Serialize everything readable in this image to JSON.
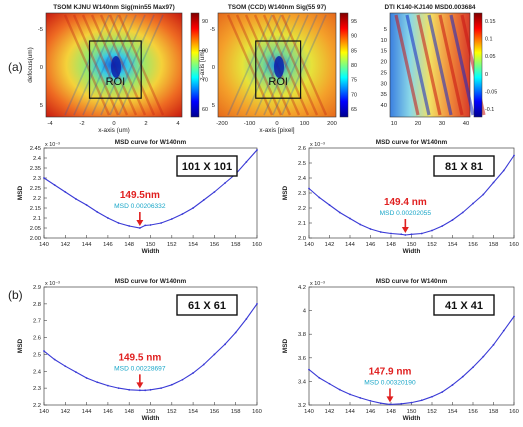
{
  "panel_labels": {
    "a": "(a)",
    "b": "(b)"
  },
  "colors": {
    "curve": "#3a3ad6",
    "red": "#e02020",
    "cyan": "#19a6c8"
  },
  "heatmaps": [
    {
      "title": "TSOM KJNU W140nm Sig(min55 Max97)",
      "xlabel": "x-axis (um)",
      "ylabel": "defocus(um)",
      "xticks": [
        "-4",
        "-2",
        "0",
        "2",
        "4"
      ],
      "yticks": [
        "-5",
        "0",
        "5"
      ],
      "cticks": [
        "90",
        "80",
        "70",
        "60"
      ],
      "roi": "ROI"
    },
    {
      "title": "TSOM (CCD) W140nm Sig(55 97)",
      "xlabel": "x-axis [pixel]",
      "ylabel": "z-axis [um]",
      "xticks": [
        "-200",
        "-100",
        "0",
        "100",
        "200"
      ],
      "yticks": [
        "-5",
        "0",
        "5"
      ],
      "cticks": [
        "95",
        "90",
        "85",
        "80",
        "75",
        "70",
        "65"
      ],
      "roi": "ROI"
    },
    {
      "title": "DTI K140-KJ140 MSD0.003684",
      "xlabel": "",
      "ylabel": "",
      "xticks": [
        "10",
        "20",
        "30",
        "40"
      ],
      "yticks": [
        "5",
        "10",
        "15",
        "20",
        "25",
        "30",
        "35",
        "40"
      ],
      "cticks": [
        "0.15",
        "0.1",
        "0.05",
        "0",
        "-0.05",
        "-0.1"
      ],
      "roi": ""
    }
  ],
  "chart_data": [
    {
      "type": "line",
      "title": "MSD curve for W140nm",
      "xlabel": "Width",
      "ylabel": "MSD",
      "exponent": "x 10⁻³",
      "box_label": "101 X 101",
      "min_label": "149.5nm",
      "msd_label": "MSD  0.00206332",
      "xlim": [
        140,
        160
      ],
      "ylim": [
        2.0,
        2.45
      ],
      "xticks": [
        140,
        142,
        144,
        146,
        148,
        150,
        152,
        154,
        156,
        158,
        160
      ],
      "yticks": [
        2.0,
        2.05,
        2.1,
        2.15,
        2.2,
        2.25,
        2.3,
        2.35,
        2.4,
        2.45
      ],
      "ytick_labels": [
        "2.00",
        "2.05",
        "2.1",
        "2.15",
        "2.2",
        "2.25",
        "2.3",
        "2.35",
        "2.4",
        "2.45"
      ],
      "x": [
        140,
        141,
        142,
        143,
        144,
        145,
        146,
        147,
        148,
        149,
        149.5,
        150,
        151,
        152,
        153,
        154,
        155,
        156,
        157,
        158,
        159,
        160
      ],
      "y": [
        2.3,
        2.265,
        2.23,
        2.195,
        2.165,
        2.13,
        2.1,
        2.075,
        2.06,
        2.05,
        2.063,
        2.065,
        2.075,
        2.095,
        2.12,
        2.15,
        2.19,
        2.23,
        2.275,
        2.32,
        2.38,
        2.44
      ]
    },
    {
      "type": "line",
      "title": "MSD curve for W140nm",
      "xlabel": "Width",
      "ylabel": "MSD",
      "exponent": "x 10⁻³",
      "box_label": "81 X 81",
      "min_label": "149.4 nm",
      "msd_label": "MSD  0.00202055",
      "xlim": [
        140,
        160
      ],
      "ylim": [
        2.0,
        2.6
      ],
      "xticks": [
        140,
        142,
        144,
        146,
        148,
        150,
        152,
        154,
        156,
        158,
        160
      ],
      "yticks": [
        2.0,
        2.1,
        2.2,
        2.3,
        2.4,
        2.5,
        2.6
      ],
      "ytick_labels": [
        "2.0",
        "2.1",
        "2.2",
        "2.3",
        "2.4",
        "2.5",
        "2.6"
      ],
      "x": [
        140,
        141,
        142,
        143,
        144,
        145,
        146,
        147,
        148,
        149,
        149.4,
        150,
        151,
        152,
        153,
        154,
        155,
        156,
        157,
        158,
        159,
        160
      ],
      "y": [
        2.33,
        2.27,
        2.22,
        2.17,
        2.13,
        2.09,
        2.06,
        2.04,
        2.03,
        2.025,
        2.02,
        2.025,
        2.03,
        2.05,
        2.08,
        2.12,
        2.17,
        2.23,
        2.29,
        2.37,
        2.45,
        2.55
      ]
    },
    {
      "type": "line",
      "title": "MSD curve for W140nm",
      "xlabel": "Width",
      "ylabel": "MSD",
      "exponent": "x 10⁻³",
      "box_label": "61 X 61",
      "min_label": "149.5 nm",
      "msd_label": "MSD  0.00228697",
      "xlim": [
        140,
        160
      ],
      "ylim": [
        2.2,
        2.9
      ],
      "xticks": [
        140,
        142,
        144,
        146,
        148,
        150,
        152,
        154,
        156,
        158,
        160
      ],
      "yticks": [
        2.2,
        2.3,
        2.4,
        2.5,
        2.6,
        2.7,
        2.8,
        2.9
      ],
      "ytick_labels": [
        "2.2",
        "2.3",
        "2.4",
        "2.5",
        "2.6",
        "2.7",
        "2.8",
        "2.9"
      ],
      "x": [
        140,
        141,
        142,
        143,
        144,
        145,
        146,
        147,
        148,
        149,
        149.5,
        150,
        151,
        152,
        153,
        154,
        155,
        156,
        157,
        158,
        159,
        160
      ],
      "y": [
        2.52,
        2.47,
        2.43,
        2.395,
        2.36,
        2.335,
        2.315,
        2.3,
        2.29,
        2.287,
        2.287,
        2.29,
        2.3,
        2.32,
        2.35,
        2.39,
        2.44,
        2.5,
        2.56,
        2.63,
        2.71,
        2.8
      ]
    },
    {
      "type": "line",
      "title": "MSD curve for W140nm",
      "xlabel": "Width",
      "ylabel": "MSD",
      "exponent": "x 10⁻³",
      "box_label": "41 X 41",
      "min_label": "147.9 nm",
      "msd_label": "MSD  0.00320190",
      "xlim": [
        140,
        160
      ],
      "ylim": [
        3.2,
        4.2
      ],
      "xticks": [
        140,
        142,
        144,
        146,
        148,
        150,
        152,
        154,
        156,
        158,
        160
      ],
      "yticks": [
        3.2,
        3.4,
        3.6,
        3.8,
        4.0,
        4.2
      ],
      "ytick_labels": [
        "3.2",
        "3.4",
        "3.6",
        "3.8",
        "4",
        "4.2"
      ],
      "x": [
        140,
        141,
        142,
        143,
        144,
        145,
        146,
        147,
        147.9,
        149,
        150,
        151,
        152,
        153,
        154,
        155,
        156,
        157,
        158,
        159,
        160
      ],
      "y": [
        3.5,
        3.43,
        3.38,
        3.33,
        3.29,
        3.26,
        3.235,
        3.215,
        3.205,
        3.21,
        3.22,
        3.24,
        3.27,
        3.31,
        3.37,
        3.44,
        3.52,
        3.61,
        3.71,
        3.83,
        3.95
      ]
    }
  ]
}
